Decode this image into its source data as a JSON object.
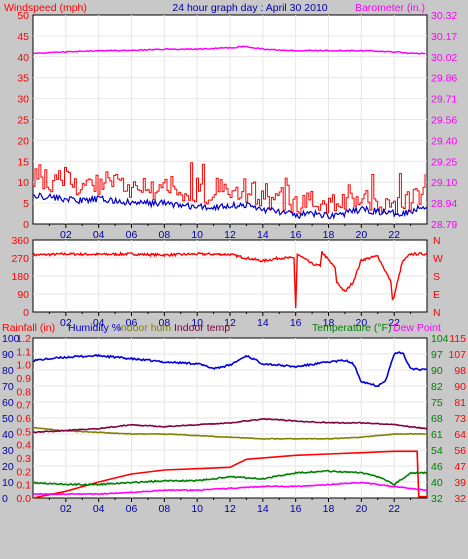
{
  "header": {
    "left_label": "Windspeed (mph)",
    "title": "24 hour graph day : April 30 2010",
    "right_label": "Barometer (in.)"
  },
  "legend3": {
    "rainfall": "Rainfall (in)",
    "humidity": "Humidity %",
    "indoor_hum": "Indoor hum",
    "indoor_temp": "Indoor temp",
    "temperature": "Temperature (°F)",
    "dew_point": "Dew Point"
  },
  "colors": {
    "background": "#c8c8c8",
    "plot_bg": "#ffffff",
    "wind_gust": "#ff0000",
    "wind_avg": "#0000c8",
    "barometer": "#ff00ff",
    "direction": "#ff0000",
    "humidity": "#0000dd",
    "indoor_hum": "#808000",
    "indoor_temp": "#800040",
    "rainfall": "#ff0000",
    "temperature": "#008000",
    "dew_point": "#ff00ff",
    "axis_text_red": "#ff0000",
    "axis_text_blue": "#0000aa",
    "axis_text_green": "#008000"
  },
  "chart_data": [
    {
      "type": "line",
      "x_ticks": [
        "02",
        "04",
        "06",
        "08",
        "10",
        "12",
        "14",
        "16",
        "18",
        "20",
        "22"
      ],
      "xlim": [
        0,
        24
      ],
      "left_axis": {
        "label": "Windspeed (mph)",
        "ticks": [
          "0",
          "5",
          "10",
          "15",
          "20",
          "25",
          "30",
          "35",
          "40",
          "45",
          "50"
        ],
        "ylim": [
          0,
          50
        ]
      },
      "right_axis": {
        "label": "Barometer (in.)",
        "ticks": [
          "28.79",
          "28.94",
          "29.10",
          "29.25",
          "29.40",
          "29.56",
          "29.71",
          "29.86",
          "30.02",
          "30.17",
          "30.32"
        ],
        "ylim": [
          28.79,
          30.32
        ]
      },
      "grid": true,
      "series": [
        {
          "name": "Wind gust",
          "axis": "left",
          "x": [
            0,
            1,
            2,
            3,
            4,
            5,
            6,
            7,
            8,
            9,
            10,
            11,
            12,
            13,
            14,
            15,
            16,
            17,
            18,
            19,
            20,
            21,
            22,
            23,
            24
          ],
          "values": [
            12,
            10,
            11,
            9,
            10,
            9,
            9,
            8,
            9,
            8,
            7,
            8,
            8,
            8,
            7,
            6,
            5,
            6,
            5,
            6,
            6,
            5,
            4,
            6,
            9
          ]
        },
        {
          "name": "Wind avg",
          "axis": "left",
          "x": [
            0,
            1,
            2,
            3,
            4,
            5,
            6,
            7,
            8,
            9,
            10,
            11,
            12,
            13,
            14,
            15,
            16,
            17,
            18,
            19,
            20,
            21,
            22,
            23,
            24
          ],
          "values": [
            7,
            6.5,
            6,
            5.5,
            6,
            5.5,
            5,
            5,
            5,
            4.5,
            4,
            4,
            4.5,
            4.5,
            3.5,
            3,
            2,
            2.5,
            2,
            2.5,
            3.5,
            3,
            2.5,
            3,
            4.5
          ]
        },
        {
          "name": "Barometer",
          "axis": "right",
          "x": [
            0,
            2,
            4,
            6,
            8,
            10,
            12,
            13,
            14,
            16,
            18,
            20,
            22,
            23,
            24
          ],
          "values": [
            30.04,
            30.05,
            30.06,
            30.06,
            30.07,
            30.07,
            30.08,
            30.09,
            30.07,
            30.06,
            30.06,
            30.06,
            30.05,
            30.04,
            30.04
          ]
        }
      ]
    },
    {
      "type": "line",
      "x_ticks": [
        "02",
        "04",
        "06",
        "08",
        "10",
        "12",
        "14",
        "16",
        "18",
        "20",
        "22"
      ],
      "xlim": [
        0,
        24
      ],
      "left_axis": {
        "ticks": [
          "0",
          "90",
          "180",
          "270",
          "360"
        ],
        "ylim": [
          0,
          360
        ]
      },
      "right_axis": {
        "ticks": [
          "N",
          "W",
          "S",
          "E",
          "N"
        ]
      },
      "grid": true,
      "series": [
        {
          "name": "Wind direction",
          "x": [
            0,
            2,
            4,
            6,
            8,
            10,
            12,
            13,
            14,
            15,
            15.9,
            16,
            16.1,
            17,
            17.5,
            17.6,
            18,
            18.4,
            18.5,
            19,
            19.5,
            20,
            21,
            21.8,
            21.9,
            22,
            22.5,
            23,
            24
          ],
          "values": [
            285,
            290,
            288,
            290,
            285,
            290,
            288,
            270,
            255,
            270,
            270,
            20,
            290,
            240,
            230,
            300,
            260,
            220,
            150,
            100,
            150,
            260,
            280,
            150,
            60,
            80,
            250,
            290,
            290
          ]
        }
      ]
    },
    {
      "type": "line",
      "x_ticks": [
        "02",
        "04",
        "06",
        "08",
        "10",
        "12",
        "14",
        "16",
        "18",
        "20",
        "22"
      ],
      "xlim": [
        0,
        24
      ],
      "axes": {
        "humidity": {
          "ticks": [
            "0",
            "10",
            "20",
            "30",
            "40",
            "50",
            "60",
            "70",
            "80",
            "90",
            "100"
          ],
          "ylim": [
            0,
            100
          ]
        },
        "rainfall": {
          "ticks": [
            "0.0",
            "0.1",
            "0.2",
            "0.3",
            "0.4",
            "0.5",
            "0.6",
            "0.7",
            "0.8",
            "0.9",
            "1.0",
            "1.1",
            "1.2"
          ],
          "ylim": [
            0,
            1.2
          ]
        },
        "temperature_outer": {
          "ticks": [
            "32",
            "39",
            "47",
            "56",
            "64",
            "73",
            "81",
            "90",
            "98",
            "107",
            "115"
          ],
          "ylim": [
            32,
            115
          ]
        },
        "temperature_inner": {
          "ticks": [
            "32",
            "40",
            "46",
            "54",
            "61",
            "68",
            "75",
            "82",
            "90",
            "97",
            "104"
          ],
          "ylim": [
            32,
            104
          ]
        }
      },
      "grid": true,
      "series": [
        {
          "name": "Humidity %",
          "axis": "humidity",
          "x": [
            0,
            2,
            4,
            6,
            8,
            10,
            11,
            12,
            13,
            14,
            15,
            16,
            18,
            19,
            19.5,
            20,
            21,
            21.5,
            22,
            22.5,
            23,
            24
          ],
          "values": [
            86,
            88,
            89,
            87,
            85,
            84,
            81,
            83,
            89,
            84,
            83,
            82,
            85,
            86,
            84,
            73,
            70,
            74,
            90,
            91,
            81,
            80
          ]
        },
        {
          "name": "Indoor hum",
          "axis": "humidity",
          "x": [
            0,
            2,
            4,
            6,
            8,
            10,
            12,
            14,
            16,
            18,
            20,
            22,
            23,
            24
          ],
          "values": [
            44,
            42,
            41,
            40,
            40,
            39,
            38,
            37,
            37,
            37,
            38,
            40,
            40,
            40
          ]
        },
        {
          "name": "Indoor temp",
          "axis": "temperature_outer",
          "x": [
            0,
            2,
            4,
            6,
            8,
            10,
            12,
            14,
            16,
            18,
            20,
            22,
            24
          ],
          "values": [
            66,
            67,
            68,
            70,
            69,
            70,
            71,
            73,
            72,
            71,
            71,
            70,
            68
          ]
        },
        {
          "name": "Rainfall (in)",
          "axis": "rainfall",
          "x": [
            0,
            2,
            4,
            6,
            8,
            10,
            12,
            13,
            16,
            18,
            20,
            22,
            23.4,
            23.5,
            24
          ],
          "values": [
            0,
            0.05,
            0.12,
            0.18,
            0.21,
            0.22,
            0.23,
            0.29,
            0.32,
            0.33,
            0.34,
            0.35,
            0.35,
            0.01,
            0.01
          ]
        },
        {
          "name": "Temperature (°F)",
          "axis": "temperature_outer",
          "x": [
            0,
            2,
            4,
            6,
            8,
            10,
            12,
            14,
            16,
            18,
            20,
            21,
            22,
            22.5,
            23,
            24
          ],
          "values": [
            40,
            39,
            39,
            40,
            41,
            41,
            43,
            42,
            45,
            46,
            45,
            43,
            39,
            42,
            45,
            45
          ]
        },
        {
          "name": "Dew Point",
          "axis": "temperature_outer",
          "x": [
            0,
            2,
            4,
            6,
            8,
            10,
            12,
            14,
            16,
            18,
            20,
            22,
            23,
            24
          ],
          "values": [
            34,
            34,
            34,
            35,
            36,
            36,
            37,
            38,
            38,
            39,
            40,
            38,
            37,
            36
          ]
        }
      ]
    }
  ]
}
